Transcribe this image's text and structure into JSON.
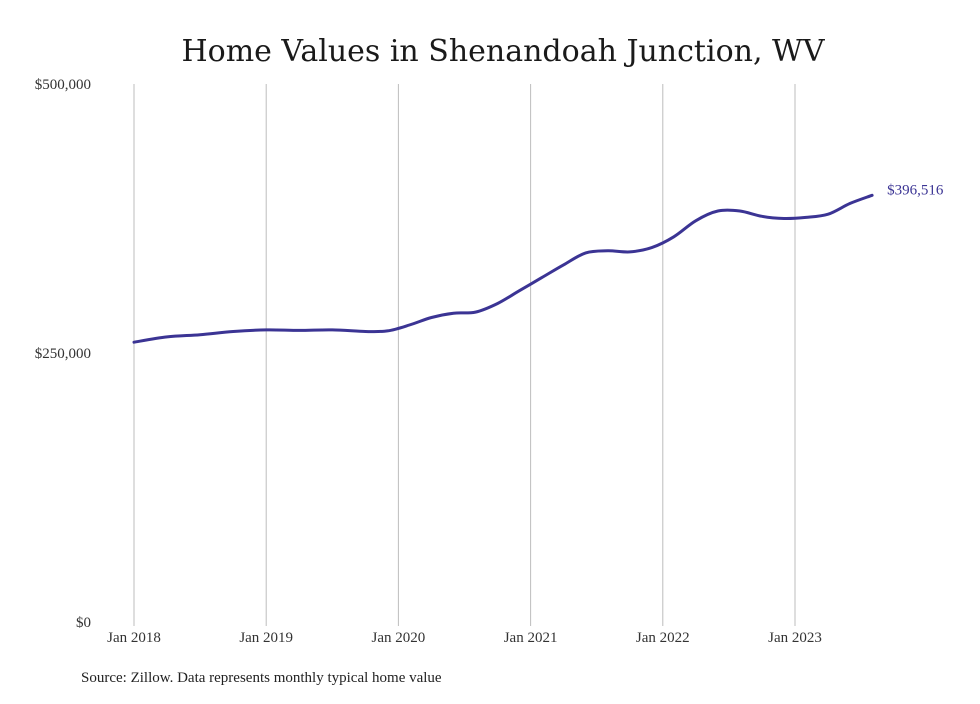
{
  "chart_data": {
    "type": "line",
    "title": "Home Values in Shenandoah Junction, WV",
    "xlabel": "",
    "ylabel": "",
    "ylim": [
      0,
      500000
    ],
    "yticks": [
      {
        "value": 0,
        "label": "$0"
      },
      {
        "value": 250000,
        "label": "$250,000"
      },
      {
        "value": 500000,
        "label": "$500,000"
      }
    ],
    "xlim": [
      "2018-01",
      "2023-08"
    ],
    "xticks": [
      {
        "date": "2018-01",
        "label": "Jan 2018"
      },
      {
        "date": "2019-01",
        "label": "Jan 2019"
      },
      {
        "date": "2020-01",
        "label": "Jan 2020"
      },
      {
        "date": "2021-01",
        "label": "Jan 2021"
      },
      {
        "date": "2022-01",
        "label": "Jan 2022"
      },
      {
        "date": "2023-01",
        "label": "Jan 2023"
      }
    ],
    "grid": {
      "vertical": true,
      "horizontal": false
    },
    "series": [
      {
        "color": "#3b3494",
        "points": [
          {
            "x": "2018-01",
            "y": 260000
          },
          {
            "x": "2018-04",
            "y": 265000
          },
          {
            "x": "2018-07",
            "y": 267000
          },
          {
            "x": "2018-10",
            "y": 270000
          },
          {
            "x": "2019-01",
            "y": 271500
          },
          {
            "x": "2019-04",
            "y": 271000
          },
          {
            "x": "2019-07",
            "y": 271500
          },
          {
            "x": "2019-10",
            "y": 270000
          },
          {
            "x": "2019-12",
            "y": 270500
          },
          {
            "x": "2020-02",
            "y": 276000
          },
          {
            "x": "2020-04",
            "y": 283000
          },
          {
            "x": "2020-06",
            "y": 287000
          },
          {
            "x": "2020-08",
            "y": 288000
          },
          {
            "x": "2020-10",
            "y": 296000
          },
          {
            "x": "2020-12",
            "y": 308000
          },
          {
            "x": "2021-02",
            "y": 320000
          },
          {
            "x": "2021-04",
            "y": 332000
          },
          {
            "x": "2021-06",
            "y": 343000
          },
          {
            "x": "2021-08",
            "y": 345000
          },
          {
            "x": "2021-10",
            "y": 344000
          },
          {
            "x": "2021-12",
            "y": 348000
          },
          {
            "x": "2022-02",
            "y": 358000
          },
          {
            "x": "2022-04",
            "y": 373000
          },
          {
            "x": "2022-06",
            "y": 382000
          },
          {
            "x": "2022-08",
            "y": 382000
          },
          {
            "x": "2022-10",
            "y": 377000
          },
          {
            "x": "2022-12",
            "y": 375000
          },
          {
            "x": "2023-02",
            "y": 376000
          },
          {
            "x": "2023-04",
            "y": 379000
          },
          {
            "x": "2023-06",
            "y": 389000
          },
          {
            "x": "2023-08",
            "y": 396516
          }
        ],
        "end_label": "$396,516"
      }
    ],
    "source_note": "Source: Zillow. Data represents monthly typical home value"
  }
}
